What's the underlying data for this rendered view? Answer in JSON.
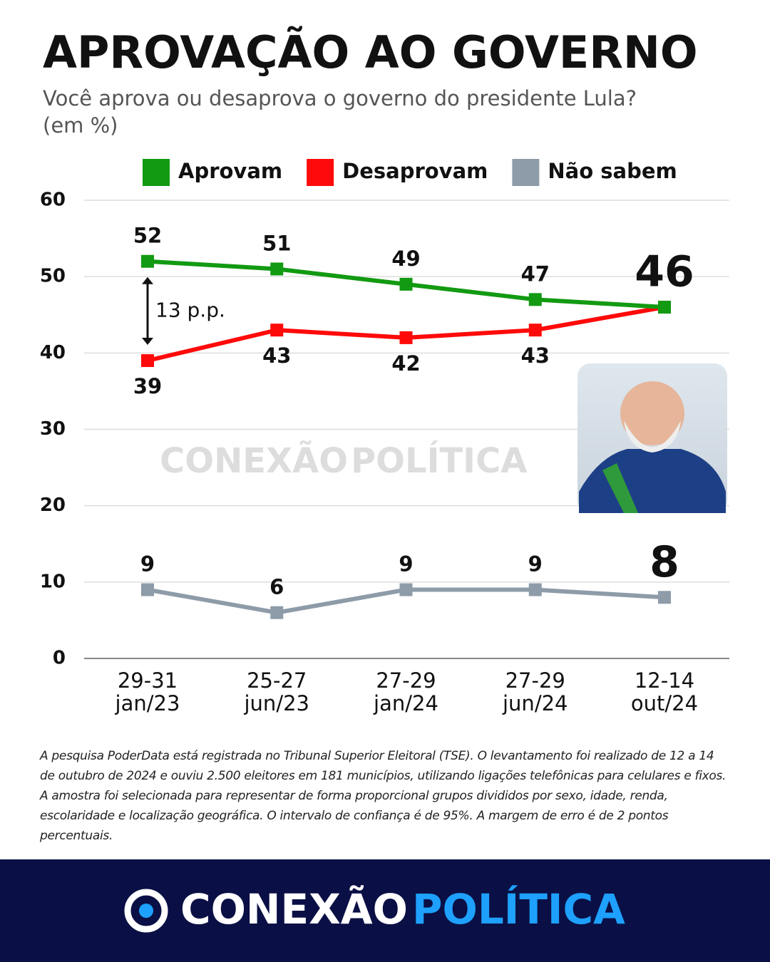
{
  "chart_data": {
    "type": "line",
    "title": "APROVAÇÃO AO GOVERNO",
    "subtitle": "Você aprova ou desaprova o governo do presidente Lula?",
    "unit_note": "(em %)",
    "categories": [
      "29-31 jan/23",
      "25-27 jun/23",
      "27-29 jan/24",
      "27-29 jun/24",
      "12-14 out/24"
    ],
    "series": [
      {
        "name": "Aprovam",
        "color": "#129a12",
        "values": [
          52,
          51,
          49,
          47,
          46
        ]
      },
      {
        "name": "Desaprovam",
        "color": "#ff0a0a",
        "values": [
          39,
          43,
          42,
          43,
          46
        ]
      },
      {
        "name": "Não sabem",
        "color": "#8e9ba8",
        "values": [
          9,
          6,
          9,
          9,
          8
        ]
      }
    ],
    "ylim": [
      0,
      60
    ],
    "yticks": [
      0,
      10,
      20,
      30,
      40,
      50,
      60
    ],
    "grid": true,
    "annotation": "13 p.p.",
    "watermark": [
      "CONEXÃO",
      "POLÍTICA"
    ],
    "footnote": "A pesquisa PoderData está registrada no Tribunal Superior Eleitoral (TSE). O levantamento foi realizado de 12 a 14 de outubro de 2024 e ouviu 2.500 eleitores em 181 municípios, utilizando ligações telefônicas para celulares e fixos. A amostra foi selecionada para representar de forma proporcional grupos divididos por sexo, idade, renda, escolaridade e localização geográfica. O intervalo de confiança é de 95%. A margem de erro é de 2 pontos percentuais.",
    "brand": [
      "CONEXÃO",
      "POLÍTICA"
    ]
  }
}
